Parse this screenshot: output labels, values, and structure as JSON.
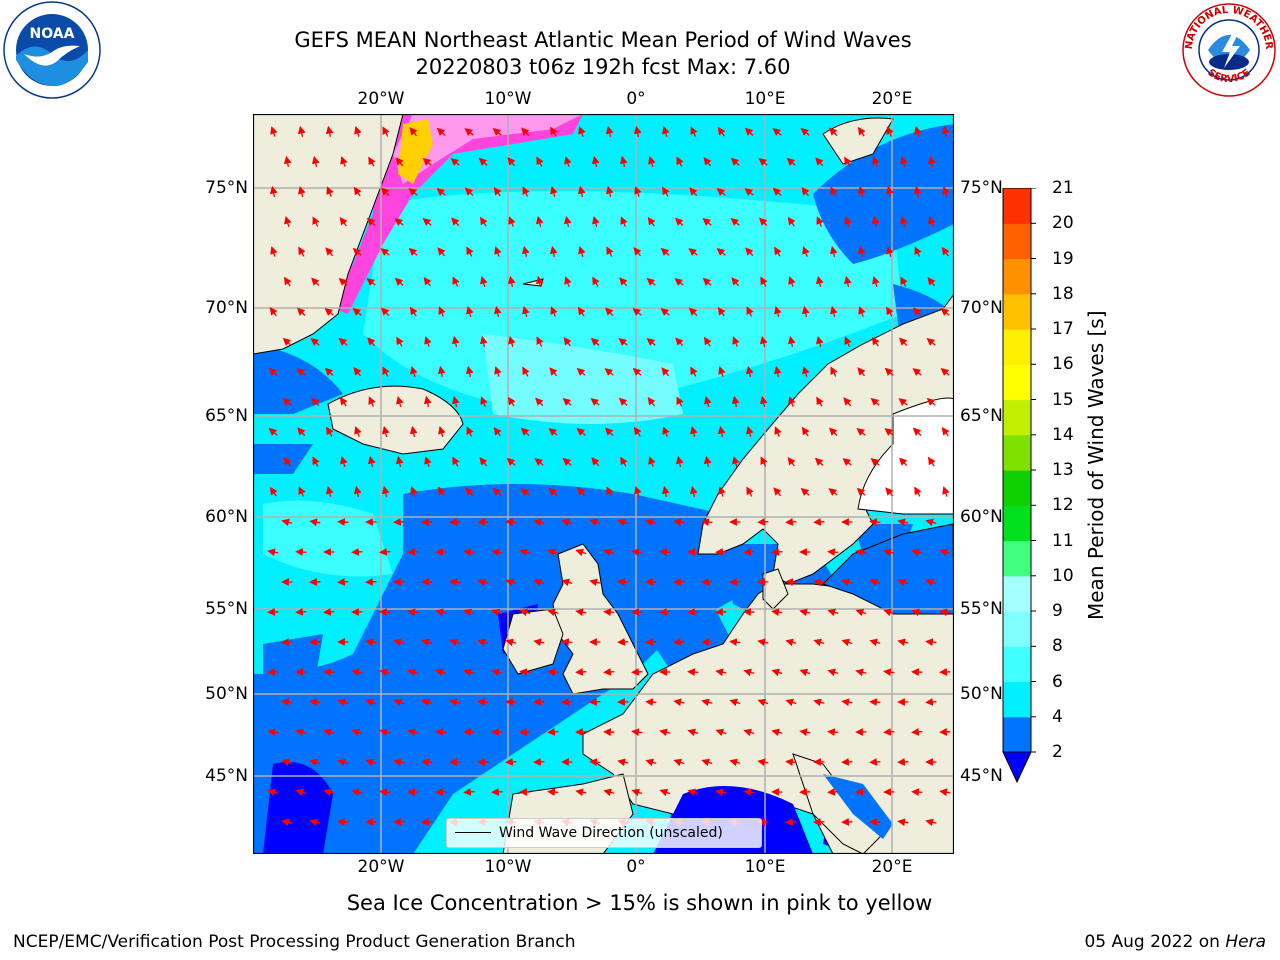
{
  "title": {
    "line1": "GEFS MEAN Northeast Atlantic Mean Period of Wind Waves",
    "line2": "20220803 t06z 192h fcst   Max: 7.60"
  },
  "axes": {
    "lon_labels": [
      "20°W",
      "10°W",
      "0°",
      "10°E",
      "20°E"
    ],
    "lat_labels": [
      "75°N",
      "70°N",
      "65°N",
      "60°N",
      "55°N",
      "50°N",
      "45°N"
    ]
  },
  "colorbar": {
    "title": "Mean Period of Wind Waves [s]",
    "tick_labels": [
      "2",
      "4",
      "6",
      "8",
      "9",
      "10",
      "11",
      "12",
      "13",
      "14",
      "15",
      "16",
      "17",
      "18",
      "19",
      "20",
      "21"
    ],
    "colors": [
      "#0073ff",
      "#00f0ff",
      "#40ffff",
      "#80ffff",
      "#a6ffff",
      "#40ff80",
      "#00e01c",
      "#0fd000",
      "#80e000",
      "#c0f000",
      "#ffff00",
      "#fff000",
      "#ffc000",
      "#ff9000",
      "#ff6000",
      "#ff3000",
      "#ff0000"
    ],
    "under_color": "#0000ff"
  },
  "legend": {
    "label": "Wind Wave Direction (unscaled)"
  },
  "caption": "Sea Ice Concentration > 15% is shown in pink to yellow",
  "footer": {
    "left": "NCEP/EMC/Verification Post Processing Product Generation Branch",
    "right_prefix": "05 Aug 2022 on ",
    "right_host": "Hera"
  },
  "logos": {
    "left": "NOAA",
    "right_top": "NATIONAL WEATHER",
    "right_bottom": "SERVICE"
  },
  "palette": {
    "land": "#efeedc",
    "ocean_low": "#0073ff",
    "ocean_mid": "#00f0ff",
    "ocean_high": "#80ffff",
    "ice": "#ff44dd",
    "arrow": "#ff0000",
    "grid": "#b0b0b0"
  }
}
